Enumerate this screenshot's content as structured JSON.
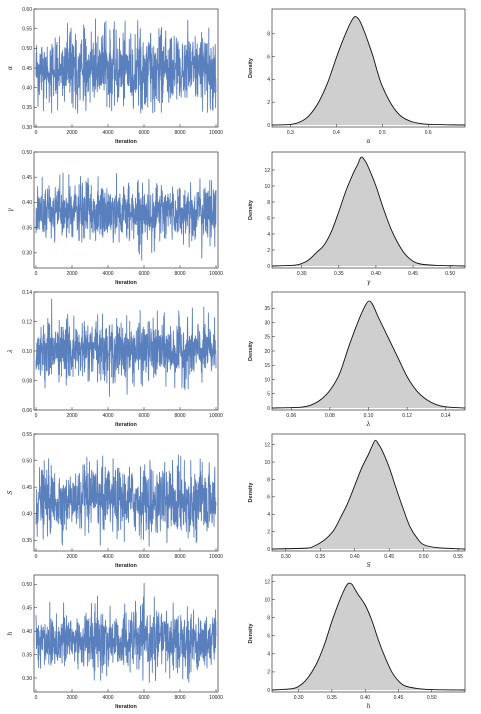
{
  "chart_data": [
    {
      "id": "trace-alpha",
      "type": "line",
      "xlabel": "Iteration",
      "ylabel": "α",
      "x_range": [
        0,
        10000
      ],
      "ylim": [
        0.3,
        0.6
      ],
      "xticks": [
        0,
        2000,
        4000,
        6000,
        8000,
        10000
      ],
      "yticks": [
        0.3,
        0.35,
        0.4,
        0.45,
        0.5,
        0.55,
        0.6
      ],
      "ytick_labels": [
        "0.30",
        "0.35",
        "0.40",
        "0.45",
        "0.50",
        "0.55",
        "0.60"
      ],
      "series": [
        {
          "mean": 0.445,
          "sd": 0.045,
          "min": 0.335,
          "max": 0.575,
          "color": "#5a7fbd"
        }
      ]
    },
    {
      "id": "density-alpha",
      "type": "area",
      "xlabel": "α",
      "ylabel": "Density",
      "xlim": [
        0.26,
        0.68
      ],
      "ylim": [
        0,
        10
      ],
      "xticks": [
        0.3,
        0.4,
        0.5,
        0.6
      ],
      "xtick_labels": [
        "0.3",
        "0.4",
        "0.5",
        "0.6"
      ],
      "yticks": [
        0,
        2,
        4,
        6,
        8
      ],
      "x": [
        0.26,
        0.3,
        0.32,
        0.34,
        0.36,
        0.38,
        0.4,
        0.41,
        0.42,
        0.43,
        0.44,
        0.45,
        0.46,
        0.47,
        0.48,
        0.49,
        0.5,
        0.52,
        0.54,
        0.56,
        0.58,
        0.6,
        0.64,
        0.68
      ],
      "y": [
        0,
        0.05,
        0.25,
        0.8,
        1.9,
        3.6,
        5.9,
        7.0,
        8.0,
        8.9,
        9.5,
        9.2,
        8.3,
        7.2,
        6.0,
        4.6,
        3.4,
        1.8,
        0.8,
        0.35,
        0.15,
        0.06,
        0.02,
        0
      ]
    },
    {
      "id": "trace-gamma",
      "type": "line",
      "xlabel": "Iteration",
      "ylabel": "γ",
      "x_range": [
        0,
        10000
      ],
      "ylim": [
        0.27,
        0.5
      ],
      "xticks": [
        0,
        2000,
        4000,
        6000,
        8000,
        10000
      ],
      "yticks": [
        0.3,
        0.35,
        0.4,
        0.45,
        0.5
      ],
      "ytick_labels": [
        "0.30",
        "0.35",
        "0.40",
        "0.45",
        "0.50"
      ],
      "series": [
        {
          "mean": 0.38,
          "sd": 0.028,
          "min": 0.285,
          "max": 0.49,
          "color": "#5a7fbd"
        }
      ]
    },
    {
      "id": "density-gamma",
      "type": "area",
      "xlabel": "γ",
      "ylabel": "Density",
      "xlim": [
        0.26,
        0.52
      ],
      "ylim": [
        0,
        14
      ],
      "xticks": [
        0.3,
        0.35,
        0.4,
        0.45,
        0.5
      ],
      "xtick_labels": [
        "0.30",
        "0.35",
        "0.40",
        "0.45",
        "0.50"
      ],
      "yticks": [
        0,
        2,
        4,
        6,
        8,
        10,
        12
      ],
      "x": [
        0.26,
        0.29,
        0.3,
        0.31,
        0.32,
        0.33,
        0.34,
        0.35,
        0.36,
        0.37,
        0.375,
        0.38,
        0.385,
        0.39,
        0.4,
        0.41,
        0.42,
        0.43,
        0.44,
        0.45,
        0.46,
        0.48,
        0.5,
        0.52
      ],
      "y": [
        0,
        0.1,
        0.3,
        0.8,
        1.7,
        2.6,
        4.3,
        6.8,
        9.5,
        11.7,
        12.6,
        13.6,
        13.2,
        12.3,
        10.0,
        7.2,
        4.7,
        2.8,
        1.4,
        0.6,
        0.25,
        0.08,
        0.03,
        0
      ]
    },
    {
      "id": "trace-lambda",
      "type": "line",
      "xlabel": "Iteration",
      "ylabel": "λ",
      "x_range": [
        0,
        10000
      ],
      "ylim": [
        0.06,
        0.14
      ],
      "xticks": [
        0,
        2000,
        4000,
        6000,
        8000,
        10000
      ],
      "yticks": [
        0.06,
        0.08,
        0.1,
        0.12,
        0.14
      ],
      "ytick_labels": [
        "0.06",
        "0.08",
        "0.10",
        "0.12",
        "0.14"
      ],
      "series": [
        {
          "mean": 0.1,
          "sd": 0.01,
          "min": 0.068,
          "max": 0.137,
          "color": "#5a7fbd"
        }
      ]
    },
    {
      "id": "density-lambda",
      "type": "area",
      "xlabel": "λ",
      "ylabel": "Density",
      "xlim": [
        0.05,
        0.15
      ],
      "ylim": [
        0,
        40
      ],
      "xticks": [
        0.06,
        0.08,
        0.1,
        0.12,
        0.14
      ],
      "xtick_labels": [
        "0.06",
        "0.08",
        "0.10",
        "0.12",
        "0.14"
      ],
      "yticks": [
        0,
        5,
        10,
        15,
        20,
        25,
        30,
        35
      ],
      "x": [
        0.05,
        0.065,
        0.07,
        0.075,
        0.08,
        0.085,
        0.09,
        0.095,
        0.098,
        0.1,
        0.102,
        0.105,
        0.11,
        0.115,
        0.12,
        0.125,
        0.13,
        0.135,
        0.14,
        0.15
      ],
      "y": [
        0,
        0.3,
        1.0,
        2.8,
        6.2,
        12.0,
        22.0,
        31.0,
        35.5,
        37.5,
        36.5,
        32.0,
        25.0,
        18.0,
        11.0,
        6.0,
        3.0,
        1.2,
        0.4,
        0
      ]
    },
    {
      "id": "trace-s",
      "type": "line",
      "xlabel": "Iteration",
      "ylabel": "S",
      "x_range": [
        0,
        10000
      ],
      "ylim": [
        0.33,
        0.55
      ],
      "xticks": [
        0,
        2000,
        4000,
        6000,
        8000,
        10000
      ],
      "yticks": [
        0.35,
        0.4,
        0.45,
        0.5,
        0.55
      ],
      "ytick_labels": [
        "0.35",
        "0.40",
        "0.45",
        "0.50",
        "0.55"
      ],
      "series": [
        {
          "mean": 0.425,
          "sd": 0.03,
          "min": 0.338,
          "max": 0.54,
          "color": "#5a7fbd"
        }
      ]
    },
    {
      "id": "density-s",
      "type": "area",
      "xlabel": "S",
      "ylabel": "Density",
      "xlim": [
        0.28,
        0.56
      ],
      "ylim": [
        0,
        13
      ],
      "xticks": [
        0.3,
        0.35,
        0.4,
        0.45,
        0.5,
        0.55
      ],
      "xtick_labels": [
        "0.30",
        "0.35",
        "0.40",
        "0.45",
        "0.50",
        "0.55"
      ],
      "yticks": [
        0,
        2,
        4,
        6,
        8,
        10,
        12
      ],
      "x": [
        0.28,
        0.33,
        0.34,
        0.35,
        0.36,
        0.37,
        0.38,
        0.39,
        0.4,
        0.41,
        0.42,
        0.425,
        0.43,
        0.435,
        0.44,
        0.45,
        0.46,
        0.47,
        0.48,
        0.49,
        0.5,
        0.52,
        0.56
      ],
      "y": [
        0,
        0.1,
        0.3,
        0.7,
        1.3,
        2.2,
        3.7,
        5.3,
        7.3,
        9.3,
        10.9,
        11.8,
        12.5,
        12.0,
        11.3,
        9.4,
        7.0,
        4.7,
        2.6,
        1.3,
        0.5,
        0.15,
        0
      ]
    },
    {
      "id": "trace-h",
      "type": "line",
      "xlabel": "Iteration",
      "ylabel": "h",
      "x_range": [
        0,
        10000
      ],
      "ylim": [
        0.27,
        0.52
      ],
      "xticks": [
        0,
        2000,
        4000,
        6000,
        8000,
        10000
      ],
      "yticks": [
        0.3,
        0.35,
        0.4,
        0.45,
        0.5
      ],
      "ytick_labels": [
        "0.30",
        "0.35",
        "0.40",
        "0.45",
        "0.50"
      ],
      "series": [
        {
          "mean": 0.38,
          "sd": 0.032,
          "min": 0.29,
          "max": 0.515,
          "color": "#5a7fbd"
        }
      ]
    },
    {
      "id": "density-h",
      "type": "area",
      "xlabel": "h",
      "ylabel": "Density",
      "xlim": [
        0.26,
        0.55
      ],
      "ylim": [
        0,
        12.5
      ],
      "xticks": [
        0.3,
        0.35,
        0.4,
        0.45,
        0.5
      ],
      "xtick_labels": [
        "0.30",
        "0.35",
        "0.40",
        "0.45",
        "0.50"
      ],
      "yticks": [
        0,
        2,
        4,
        6,
        8,
        10,
        12
      ],
      "x": [
        0.26,
        0.29,
        0.3,
        0.31,
        0.32,
        0.33,
        0.34,
        0.35,
        0.36,
        0.37,
        0.375,
        0.38,
        0.385,
        0.39,
        0.4,
        0.41,
        0.42,
        0.43,
        0.44,
        0.45,
        0.46,
        0.48,
        0.5,
        0.55
      ],
      "y": [
        0,
        0.15,
        0.4,
        1.0,
        2.0,
        3.4,
        5.3,
        7.6,
        9.6,
        11.3,
        11.8,
        11.7,
        11.1,
        10.5,
        9.4,
        7.7,
        5.5,
        3.6,
        2.0,
        1.0,
        0.45,
        0.15,
        0.05,
        0
      ]
    }
  ]
}
